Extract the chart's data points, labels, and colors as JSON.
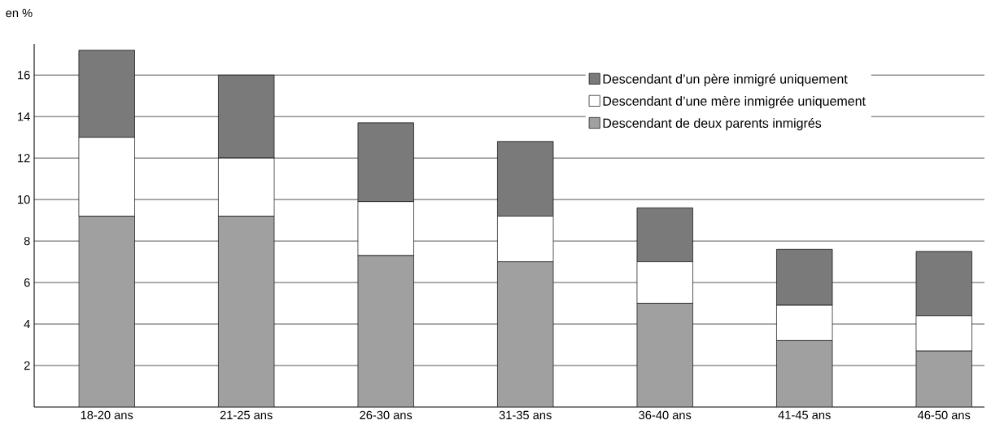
{
  "chart_data": {
    "type": "bar",
    "stacked": true,
    "ylabel": "en %",
    "categories": [
      "18-20 ans",
      "21-25 ans",
      "26-30 ans",
      "31-35 ans",
      "36-40 ans",
      "41-45 ans",
      "46-50 ans"
    ],
    "series": [
      {
        "name": "Descendant de deux parents inmigrés",
        "color": "#a0a0a0",
        "values": [
          9.2,
          9.2,
          7.3,
          7.0,
          5.0,
          3.2,
          2.7
        ]
      },
      {
        "name": "Descendant d’une mère inmigrée uniquement",
        "color": "#ffffff",
        "values": [
          3.8,
          2.8,
          2.6,
          2.2,
          2.0,
          1.7,
          1.7
        ]
      },
      {
        "name": "Descendant d’un père inmigré uniquement",
        "color": "#7a7a7a",
        "values": [
          4.2,
          4.0,
          3.8,
          3.6,
          2.6,
          2.7,
          3.1
        ]
      }
    ],
    "ylim": [
      0,
      17.5
    ],
    "yticks": [
      2,
      4,
      6,
      8,
      10,
      12,
      14,
      16
    ],
    "grid": "y",
    "legend": "top right"
  }
}
